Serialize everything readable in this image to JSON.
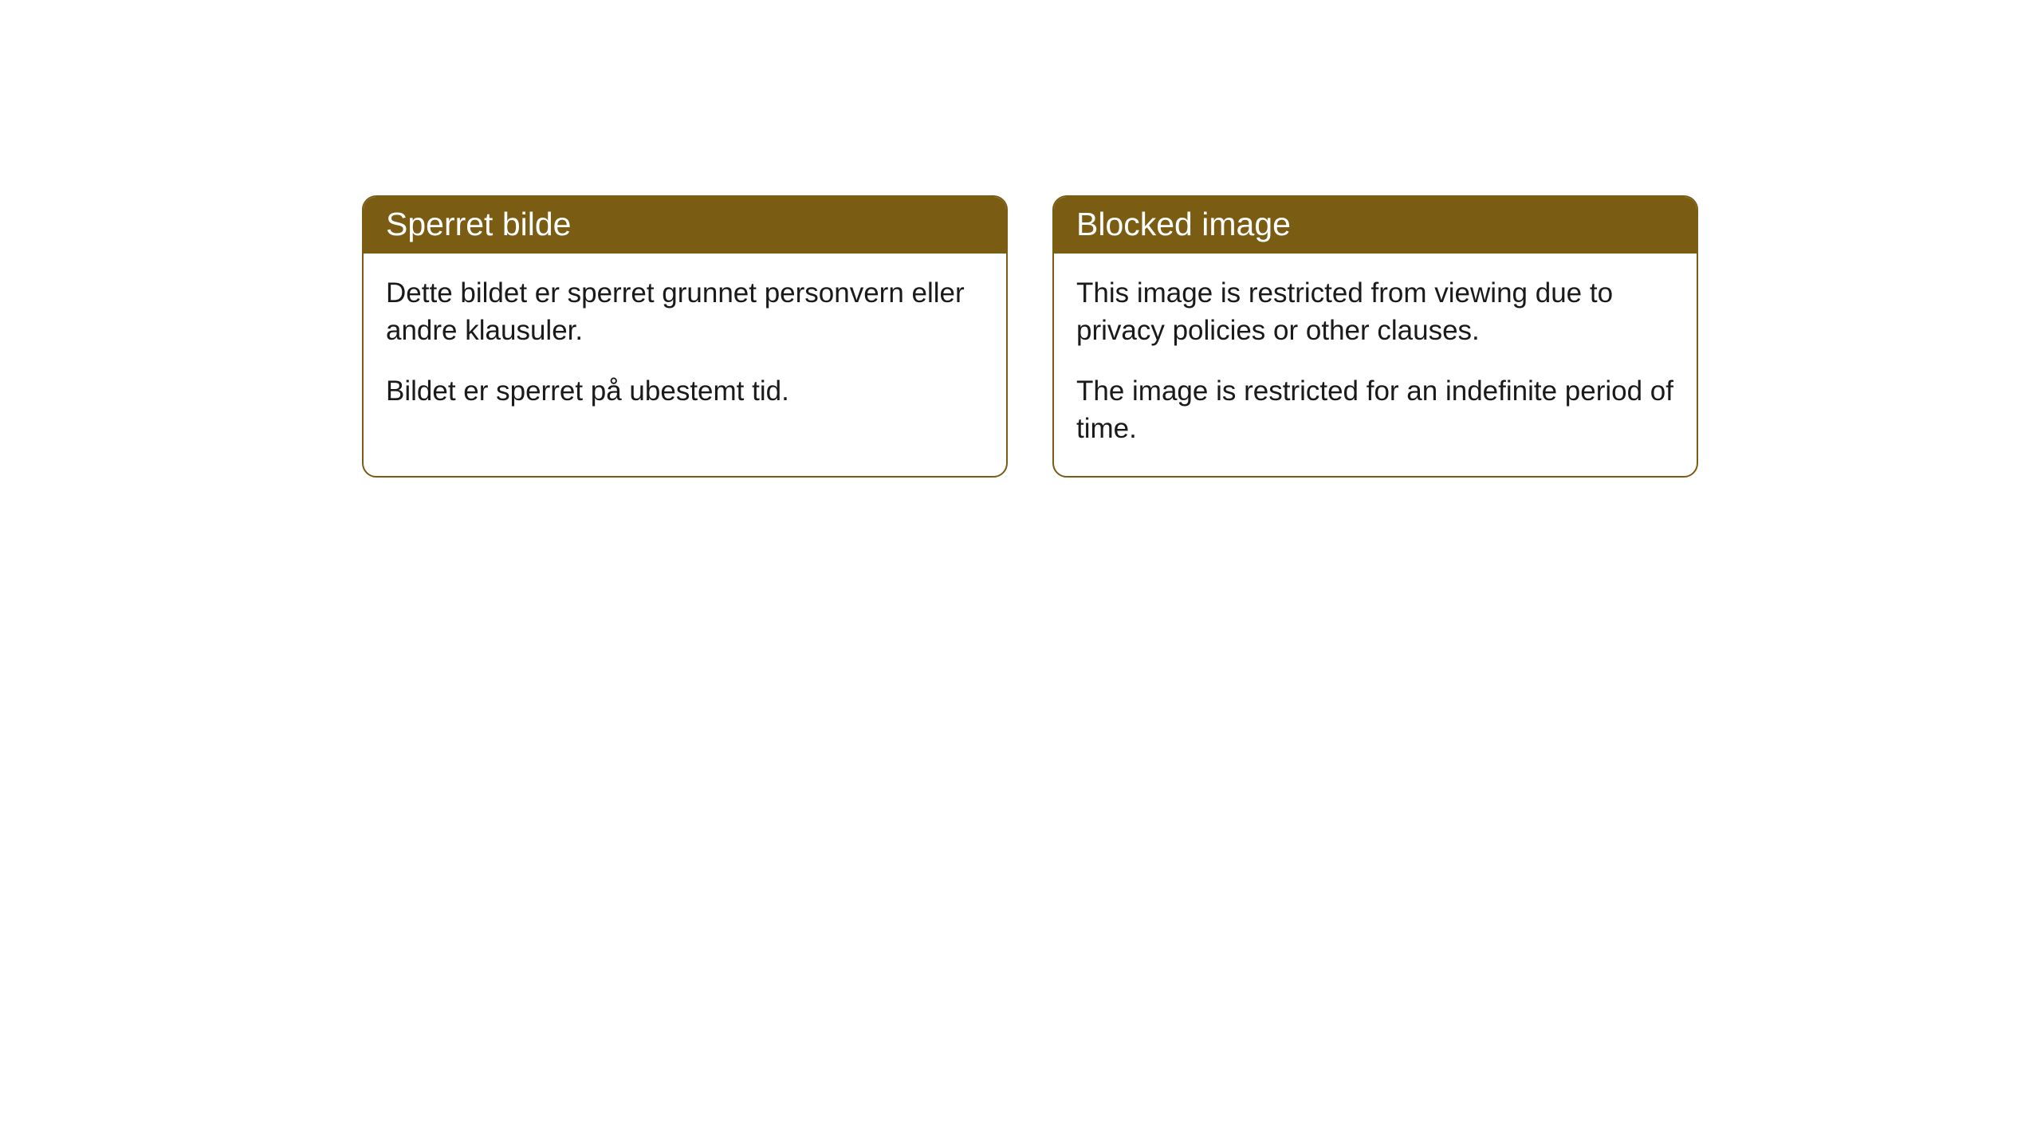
{
  "cards": [
    {
      "title": "Sperret bilde",
      "paragraph1": "Dette bildet er sperret grunnet personvern eller andre klausuler.",
      "paragraph2": "Bildet er sperret på ubestemt tid."
    },
    {
      "title": "Blocked image",
      "paragraph1": "This image is restricted from viewing due to privacy policies or other clauses.",
      "paragraph2": "The image is restricted for an indefinite period of time."
    }
  ],
  "style": {
    "header_background": "#7a5c13",
    "header_text_color": "#ffffff",
    "border_color": "#7a5c13",
    "body_background": "#ffffff",
    "body_text_color": "#1a1a1a",
    "border_radius": 18,
    "header_fontsize": 41,
    "body_fontsize": 35
  }
}
